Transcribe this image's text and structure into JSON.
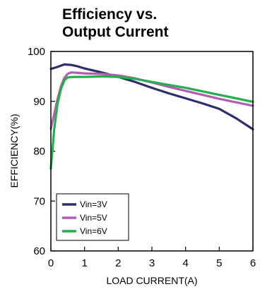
{
  "chart_data": {
    "type": "line",
    "title_lines": [
      "Efficiency vs.",
      "Output Current"
    ],
    "xlabel": "LOAD CURRENT(A)",
    "ylabel": "EFFICIENCY(%)",
    "xlim": [
      0,
      6
    ],
    "ylim": [
      60,
      100
    ],
    "xticks": [
      0,
      1,
      2,
      3,
      4,
      5,
      6
    ],
    "yticks": [
      60,
      70,
      80,
      90,
      100
    ],
    "grid": false,
    "legend_position": "bottom-left",
    "series": [
      {
        "name": "Vin=3V",
        "color": "#2b2f6b",
        "points": [
          [
            0.0,
            96.5
          ],
          [
            0.2,
            96.9
          ],
          [
            0.4,
            97.4
          ],
          [
            0.6,
            97.3
          ],
          [
            0.8,
            97.0
          ],
          [
            1.0,
            96.6
          ],
          [
            1.5,
            95.8
          ],
          [
            2.0,
            94.9
          ],
          [
            2.5,
            93.9
          ],
          [
            3.0,
            92.7
          ],
          [
            3.5,
            91.6
          ],
          [
            4.0,
            90.6
          ],
          [
            4.5,
            89.6
          ],
          [
            5.0,
            88.5
          ],
          [
            5.5,
            86.6
          ],
          [
            6.0,
            84.4
          ]
        ]
      },
      {
        "name": "Vin=5V",
        "color": "#b35cb3",
        "points": [
          [
            0.0,
            84.5
          ],
          [
            0.1,
            87.5
          ],
          [
            0.2,
            90.5
          ],
          [
            0.3,
            93.0
          ],
          [
            0.4,
            94.7
          ],
          [
            0.5,
            95.5
          ],
          [
            0.6,
            95.8
          ],
          [
            0.8,
            95.7
          ],
          [
            1.0,
            95.6
          ],
          [
            1.5,
            95.5
          ],
          [
            2.0,
            95.2
          ],
          [
            2.5,
            94.6
          ],
          [
            3.0,
            93.8
          ],
          [
            3.5,
            92.9
          ],
          [
            4.0,
            92.1
          ],
          [
            4.5,
            91.3
          ],
          [
            5.0,
            90.5
          ],
          [
            5.5,
            89.8
          ],
          [
            6.0,
            89.1
          ]
        ]
      },
      {
        "name": "Vin=6V",
        "color": "#22b04b",
        "points": [
          [
            0.0,
            76.5
          ],
          [
            0.05,
            80.5
          ],
          [
            0.1,
            84.5
          ],
          [
            0.2,
            89.5
          ],
          [
            0.3,
            92.5
          ],
          [
            0.4,
            94.2
          ],
          [
            0.5,
            94.8
          ],
          [
            0.7,
            94.9
          ],
          [
            1.0,
            94.9
          ],
          [
            1.5,
            95.0
          ],
          [
            2.0,
            94.9
          ],
          [
            2.5,
            94.5
          ],
          [
            3.0,
            93.9
          ],
          [
            3.5,
            93.3
          ],
          [
            4.0,
            92.7
          ],
          [
            4.5,
            92.0
          ],
          [
            5.0,
            91.3
          ],
          [
            5.5,
            90.6
          ],
          [
            6.0,
            89.9
          ]
        ]
      }
    ]
  }
}
